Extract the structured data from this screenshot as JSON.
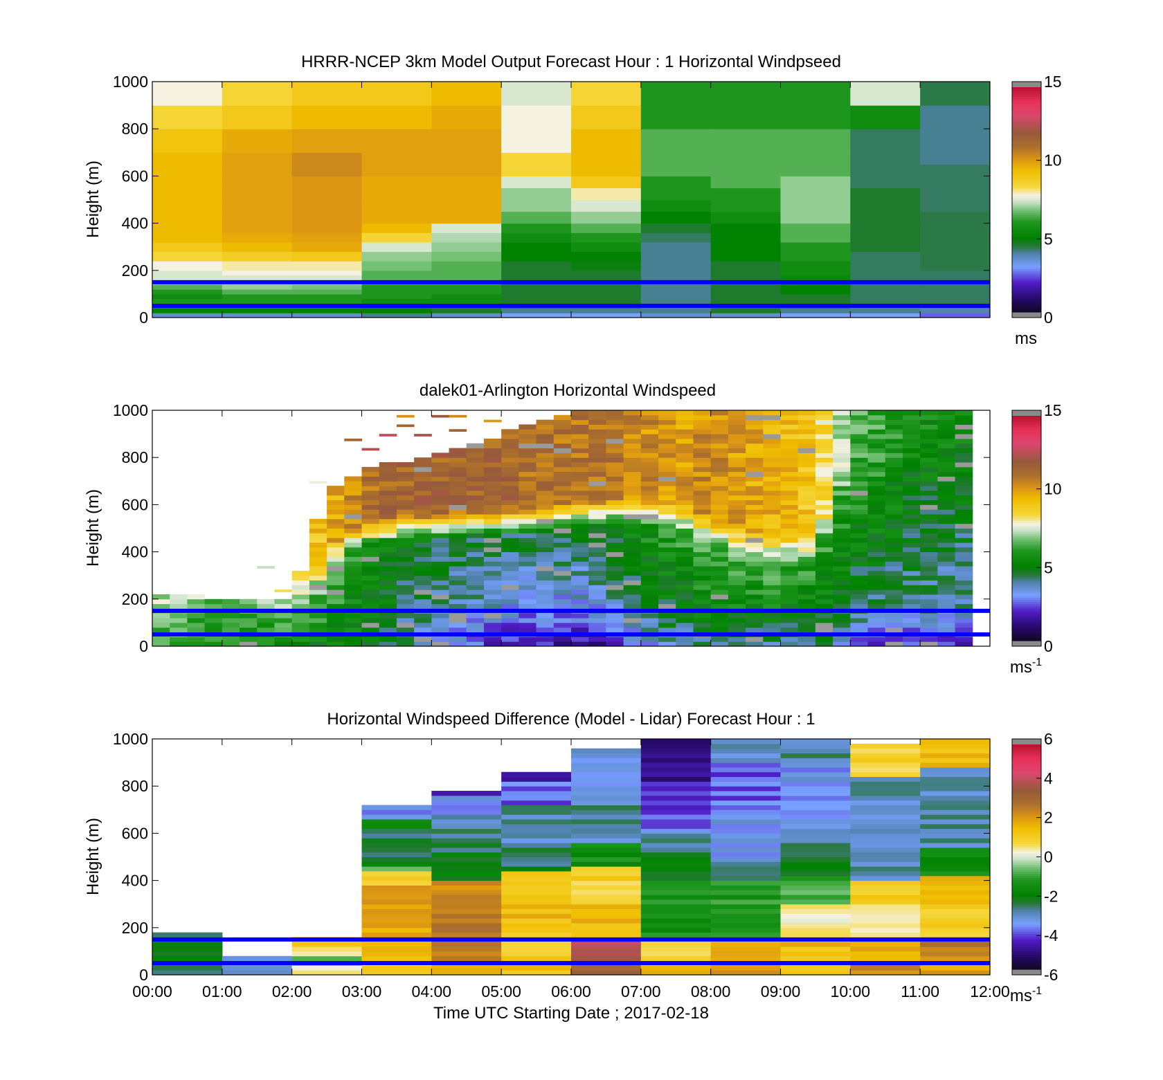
{
  "colors": {
    "background": "#ffffff",
    "boundary_lines": "#0000ff",
    "axis": "#000000"
  },
  "chart_data": [
    {
      "type": "heatmap",
      "title": "HRRR-NCEP 3km Model Output   Forecast Hour : 1 Horizontal Windpseed",
      "ylabel": "Height (m)",
      "xlabel": "",
      "xlim": [
        0,
        12
      ],
      "ylim": [
        0,
        1000
      ],
      "yticks": [
        0,
        200,
        400,
        600,
        800,
        1000
      ],
      "x_tick_labels_shown": false,
      "horizontal_lines_m": [
        150,
        50
      ],
      "colorbar": {
        "min": 0,
        "max": 15,
        "ticks": [
          0,
          5,
          10,
          15
        ],
        "unit": "ms",
        "unit_sup": ""
      },
      "time_step_h": 1,
      "height_levels_m": [
        0,
        20,
        40,
        60,
        80,
        100,
        120,
        140,
        160,
        180,
        200,
        240,
        280,
        320,
        360,
        400,
        450,
        500,
        550,
        600,
        650,
        700,
        800,
        900,
        1000
      ],
      "values": [
        [
          3.5,
          5.0,
          5.5,
          6.0,
          5.5,
          6.0,
          6.5,
          7.0,
          7.5,
          7.5,
          7.8,
          8.5,
          9.0,
          9.5,
          9.5,
          9.5,
          9.5,
          9.5,
          9.5,
          9.5,
          9.5,
          9.2,
          8.5,
          7.8
        ],
        [
          3.5,
          5.0,
          5.5,
          6.0,
          6.0,
          6.5,
          7.0,
          7.2,
          7.5,
          7.8,
          8.0,
          8.8,
          9.5,
          9.8,
          10.0,
          10.0,
          10.0,
          10.0,
          10.0,
          10.0,
          10.0,
          9.8,
          9.0,
          8.5
        ],
        [
          3.5,
          5.0,
          5.5,
          6.0,
          6.0,
          6.5,
          6.8,
          7.2,
          7.5,
          7.8,
          8.0,
          9.0,
          9.8,
          10.0,
          10.2,
          10.2,
          10.2,
          10.2,
          10.2,
          10.5,
          10.5,
          10.0,
          9.5,
          9.0
        ],
        [
          4.0,
          5.0,
          5.0,
          5.5,
          6.0,
          6.0,
          6.0,
          6.2,
          6.5,
          6.5,
          6.8,
          7.0,
          7.5,
          8.5,
          9.5,
          9.8,
          9.8,
          9.8,
          9.8,
          10.0,
          10.0,
          10.0,
          9.5,
          9.0
        ],
        [
          3.5,
          4.5,
          5.0,
          5.5,
          5.5,
          6.0,
          6.0,
          6.2,
          6.5,
          6.5,
          6.5,
          6.8,
          7.0,
          7.2,
          7.5,
          9.8,
          9.8,
          9.8,
          9.8,
          10.0,
          10.0,
          10.0,
          9.8,
          9.5
        ],
        [
          3.0,
          4.0,
          4.5,
          4.5,
          4.5,
          4.5,
          4.5,
          4.5,
          4.5,
          4.5,
          4.5,
          5.0,
          5.0,
          5.5,
          6.0,
          6.5,
          7.0,
          7.0,
          7.5,
          8.5,
          8.5,
          7.8,
          7.8,
          7.5
        ],
        [
          3.0,
          4.0,
          4.5,
          4.5,
          4.5,
          4.5,
          4.5,
          4.5,
          4.5,
          4.5,
          4.8,
          5.0,
          5.5,
          6.0,
          6.5,
          7.0,
          7.5,
          8.0,
          9.0,
          9.5,
          9.5,
          9.5,
          9.0,
          8.5
        ],
        [
          3.5,
          4.0,
          4.0,
          4.0,
          4.0,
          4.0,
          4.0,
          4.0,
          4.0,
          4.0,
          4.0,
          4.0,
          4.0,
          4.2,
          4.5,
          5.0,
          5.5,
          6.0,
          6.0,
          6.5,
          6.5,
          6.5,
          6.0,
          6.0
        ],
        [
          3.5,
          4.5,
          4.5,
          4.5,
          4.5,
          4.5,
          4.5,
          4.5,
          4.5,
          4.5,
          4.5,
          5.0,
          5.0,
          5.0,
          5.0,
          5.5,
          6.0,
          6.0,
          6.5,
          6.5,
          6.5,
          6.5,
          6.0,
          6.0
        ],
        [
          3.0,
          4.0,
          4.5,
          4.5,
          4.5,
          5.0,
          5.0,
          5.0,
          5.2,
          5.5,
          5.5,
          6.0,
          6.0,
          6.5,
          6.5,
          7.0,
          7.0,
          7.0,
          7.0,
          6.5,
          6.5,
          6.5,
          6.0,
          6.0
        ],
        [
          3.0,
          4.0,
          4.0,
          4.2,
          4.2,
          4.2,
          4.2,
          4.2,
          4.2,
          4.2,
          4.2,
          4.2,
          4.5,
          4.5,
          4.5,
          4.5,
          4.5,
          4.5,
          4.2,
          4.2,
          4.2,
          4.2,
          5.5,
          7.5
        ],
        [
          2.5,
          3.8,
          4.0,
          4.2,
          4.2,
          4.2,
          4.2,
          4.2,
          4.2,
          4.2,
          4.3,
          4.3,
          4.3,
          4.3,
          4.3,
          4.3,
          4.2,
          4.2,
          4.2,
          4.2,
          4.0,
          4.0,
          4.0,
          4.3
        ]
      ]
    },
    {
      "type": "heatmap",
      "title": "dalek01-Arlington  Horizontal Windspeed",
      "ylabel": "Height (m)",
      "xlabel": "",
      "xlim": [
        0,
        12
      ],
      "ylim": [
        0,
        1000
      ],
      "yticks": [
        0,
        200,
        400,
        600,
        800,
        1000
      ],
      "x_tick_labels_shown": false,
      "horizontal_lines_m": [
        150,
        50
      ],
      "colorbar": {
        "min": 0,
        "max": 15,
        "ticks": [
          0,
          5,
          10,
          15
        ],
        "unit": "ms",
        "unit_sup": "-1"
      },
      "time_step_h": 0.25,
      "data_end_h": 11.75,
      "height_step_m": 20,
      "profiles": {
        "time_h": [
          0,
          1,
          2,
          2.5,
          3,
          3.5,
          4,
          4.5,
          5,
          5.5,
          6,
          6.5,
          7,
          7.5,
          8,
          8.5,
          9,
          9.5,
          10,
          10.5,
          11,
          11.75
        ],
        "top_m": [
          230,
          200,
          200,
          650,
          740,
          780,
          800,
          840,
          900,
          960,
          990,
          1000,
          1000,
          1000,
          1000,
          1000,
          1000,
          1000,
          1000,
          1000,
          1000,
          1000
        ],
        "jet_core_ms": [
          7.5,
          7.0,
          8.0,
          9.5,
          11.0,
          11.5,
          11.5,
          11.5,
          11.5,
          11.0,
          11.0,
          11.0,
          10.5,
          10.0,
          10.5,
          10.0,
          9.5,
          9.0,
          6.5,
          6.0,
          6.0,
          6.0
        ],
        "transition_m": [
          120,
          120,
          120,
          300,
          420,
          440,
          450,
          460,
          470,
          480,
          500,
          510,
          520,
          500,
          440,
          380,
          360,
          360,
          700,
          850,
          950,
          1000
        ],
        "mid_ms": [
          7.0,
          6.5,
          7.0,
          7.0,
          5.5,
          5.0,
          4.5,
          4.5,
          4.5,
          4.5,
          4.5,
          5.0,
          5.5,
          6.0,
          6.5,
          6.5,
          6.5,
          6.0,
          6.0,
          6.0,
          5.5,
          5.5
        ],
        "low_ms": [
          6.5,
          6.0,
          5.5,
          5.0,
          5.0,
          4.0,
          3.5,
          2.5,
          2.0,
          1.5,
          1.5,
          1.5,
          3.0,
          3.5,
          4.0,
          4.0,
          4.0,
          4.5,
          2.5,
          2.0,
          2.0,
          2.0
        ]
      }
    },
    {
      "type": "heatmap",
      "title": "Horizontal Windspeed Difference (Model - Lidar) Forecast Hour : 1",
      "ylabel": "Height (m)",
      "xlabel": "Time UTC  Starting Date ; 2017-02-18",
      "xlim": [
        0,
        12
      ],
      "ylim": [
        0,
        1000
      ],
      "yticks": [
        0,
        200,
        400,
        600,
        800,
        1000
      ],
      "xtick_labels": [
        "00:00",
        "01:00",
        "02:00",
        "03:00",
        "04:00",
        "05:00",
        "06:00",
        "07:00",
        "08:00",
        "09:00",
        "10:00",
        "11:00",
        "12:00"
      ],
      "horizontal_lines_m": [
        150,
        50
      ],
      "colorbar": {
        "min": -6,
        "max": 6,
        "ticks": [
          -6,
          -4,
          -2,
          0,
          2,
          4,
          6
        ],
        "unit": "ms",
        "unit_sup": "-1"
      },
      "time_step_h": 1,
      "height_step_m": 20,
      "columns": [
        {
          "top_m": 180,
          "segments": [
            [
              0,
              40,
              -2.5
            ],
            [
              40,
              180,
              -2.5
            ]
          ]
        },
        {
          "top_m": 80,
          "segments": [
            [
              0,
              20,
              -2.8
            ],
            [
              20,
              60,
              -3.0
            ],
            [
              60,
              80,
              -3.0
            ]
          ]
        },
        {
          "top_m": 160,
          "segments": [
            [
              0,
              40,
              0.5
            ],
            [
              40,
              80,
              -0.5
            ],
            [
              80,
              120,
              0.3
            ],
            [
              120,
              160,
              1.0
            ]
          ]
        },
        {
          "top_m": 730,
          "segments": [
            [
              0,
              60,
              1.0
            ],
            [
              60,
              160,
              1.5
            ],
            [
              160,
              380,
              2.0
            ],
            [
              380,
              440,
              1.0
            ],
            [
              440,
              460,
              -0.5
            ],
            [
              460,
              500,
              -2.0
            ],
            [
              500,
              580,
              -2.5
            ],
            [
              580,
              620,
              -3.0
            ],
            [
              620,
              660,
              -2.0
            ],
            [
              660,
              690,
              -3.0
            ],
            [
              690,
              730,
              -3.5
            ]
          ]
        },
        {
          "top_m": 790,
          "segments": [
            [
              0,
              60,
              2.0
            ],
            [
              60,
              400,
              2.5
            ],
            [
              400,
              520,
              -2.0
            ],
            [
              520,
              580,
              -2.5
            ],
            [
              580,
              690,
              -3.0
            ],
            [
              690,
              760,
              -3.5
            ],
            [
              760,
              790,
              -4.5
            ]
          ]
        },
        {
          "top_m": 860,
          "segments": [
            [
              0,
              60,
              1.5
            ],
            [
              60,
              180,
              1.0
            ],
            [
              180,
              300,
              1.5
            ],
            [
              300,
              440,
              1.0
            ],
            [
              440,
              540,
              -2.5
            ],
            [
              540,
              720,
              -3.0
            ],
            [
              720,
              830,
              -4.0
            ],
            [
              830,
              860,
              -4.5
            ]
          ]
        },
        {
          "top_m": 960,
          "segments": [
            [
              0,
              60,
              3.0
            ],
            [
              60,
              160,
              4.0
            ],
            [
              160,
              300,
              1.5
            ],
            [
              300,
              460,
              1.0
            ],
            [
              460,
              560,
              -1.5
            ],
            [
              560,
              800,
              -3.0
            ],
            [
              800,
              920,
              -3.5
            ],
            [
              920,
              960,
              -3.0
            ]
          ]
        },
        {
          "top_m": 1000,
          "segments": [
            [
              0,
              60,
              1.5
            ],
            [
              60,
              160,
              1.0
            ],
            [
              160,
              400,
              -1.5
            ],
            [
              400,
              520,
              -2.0
            ],
            [
              520,
              620,
              -3.0
            ],
            [
              620,
              700,
              -4.0
            ],
            [
              700,
              820,
              -4.5
            ],
            [
              820,
              1000,
              -5.0
            ]
          ]
        },
        {
          "top_m": 1000,
          "segments": [
            [
              0,
              60,
              2.0
            ],
            [
              60,
              160,
              1.5
            ],
            [
              160,
              400,
              -1.2
            ],
            [
              400,
              480,
              -3.0
            ],
            [
              480,
              700,
              -3.5
            ],
            [
              700,
              900,
              -4.0
            ],
            [
              900,
              1000,
              -3.0
            ]
          ]
        },
        {
          "top_m": 1000,
          "segments": [
            [
              0,
              60,
              1.0
            ],
            [
              60,
              160,
              1.5
            ],
            [
              160,
              300,
              0.5
            ],
            [
              300,
              420,
              -1.0
            ],
            [
              420,
              500,
              -2.0
            ],
            [
              500,
              600,
              -3.0
            ],
            [
              600,
              920,
              -3.5
            ],
            [
              920,
              1000,
              -3.0
            ]
          ]
        },
        {
          "top_m": 980,
          "segments": [
            [
              0,
              60,
              2.5
            ],
            [
              60,
              160,
              2.0
            ],
            [
              160,
              300,
              0.5
            ],
            [
              300,
              400,
              1.0
            ],
            [
              400,
              600,
              -3.0
            ],
            [
              600,
              840,
              -3.0
            ],
            [
              840,
              980,
              1.0
            ]
          ]
        },
        {
          "top_m": 1000,
          "segments": [
            [
              0,
              60,
              2.0
            ],
            [
              60,
              160,
              2.5
            ],
            [
              160,
              300,
              1.0
            ],
            [
              300,
              420,
              1.5
            ],
            [
              420,
              540,
              -1.5
            ],
            [
              540,
              880,
              -3.0
            ],
            [
              880,
              1000,
              1.5
            ]
          ]
        }
      ]
    }
  ]
}
